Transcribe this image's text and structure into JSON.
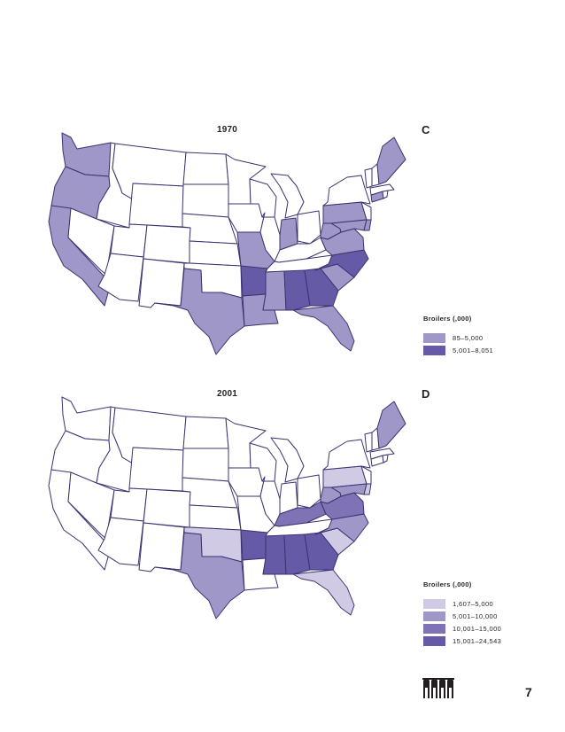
{
  "page_number": "7",
  "colors": {
    "outline": "#3d3270",
    "none": "#ffffff",
    "light": "#d0cae4",
    "mid": "#a097c9",
    "midDark": "#7f73b5",
    "dark": "#655aa5"
  },
  "maps": [
    {
      "year": "1970",
      "letter": "C",
      "legend_title": "Broilers (,000)",
      "legend": [
        {
          "label": "85–5,000",
          "color": "mid"
        },
        {
          "label": "5,001–8,051",
          "color": "dark"
        }
      ],
      "states": {
        "WA": "mid",
        "OR": "mid",
        "CA": "mid",
        "TX": "mid",
        "MO": "mid",
        "LA": "mid",
        "MS": "mid",
        "FL": "mid",
        "SC": "mid",
        "VA": "mid",
        "WV": "mid",
        "MD": "mid",
        "DE": "mid",
        "PA": "mid",
        "IN": "mid",
        "ME": "mid",
        "CT": "mid",
        "AR": "dark",
        "AL": "dark",
        "GA": "dark",
        "NC": "dark"
      }
    },
    {
      "year": "2001",
      "letter": "D",
      "legend_title": "Broilers (,000)",
      "legend": [
        {
          "label": "1,607–5,000",
          "color": "light"
        },
        {
          "label": "5,001–10,000",
          "color": "mid"
        },
        {
          "label": "10,001–15,000",
          "color": "midDark"
        },
        {
          "label": "15,001–24,543",
          "color": "dark"
        }
      ],
      "states": {
        "OK": "light",
        "PA": "light",
        "DE": "light",
        "SC": "light",
        "FL": "light",
        "TX": "mid",
        "NC": "mid",
        "ME": "mid",
        "MD": "mid",
        "WV": "mid",
        "KY": "midDark",
        "VA": "midDark",
        "AR": "dark",
        "MS": "dark",
        "AL": "dark",
        "GA": "dark"
      }
    }
  ]
}
